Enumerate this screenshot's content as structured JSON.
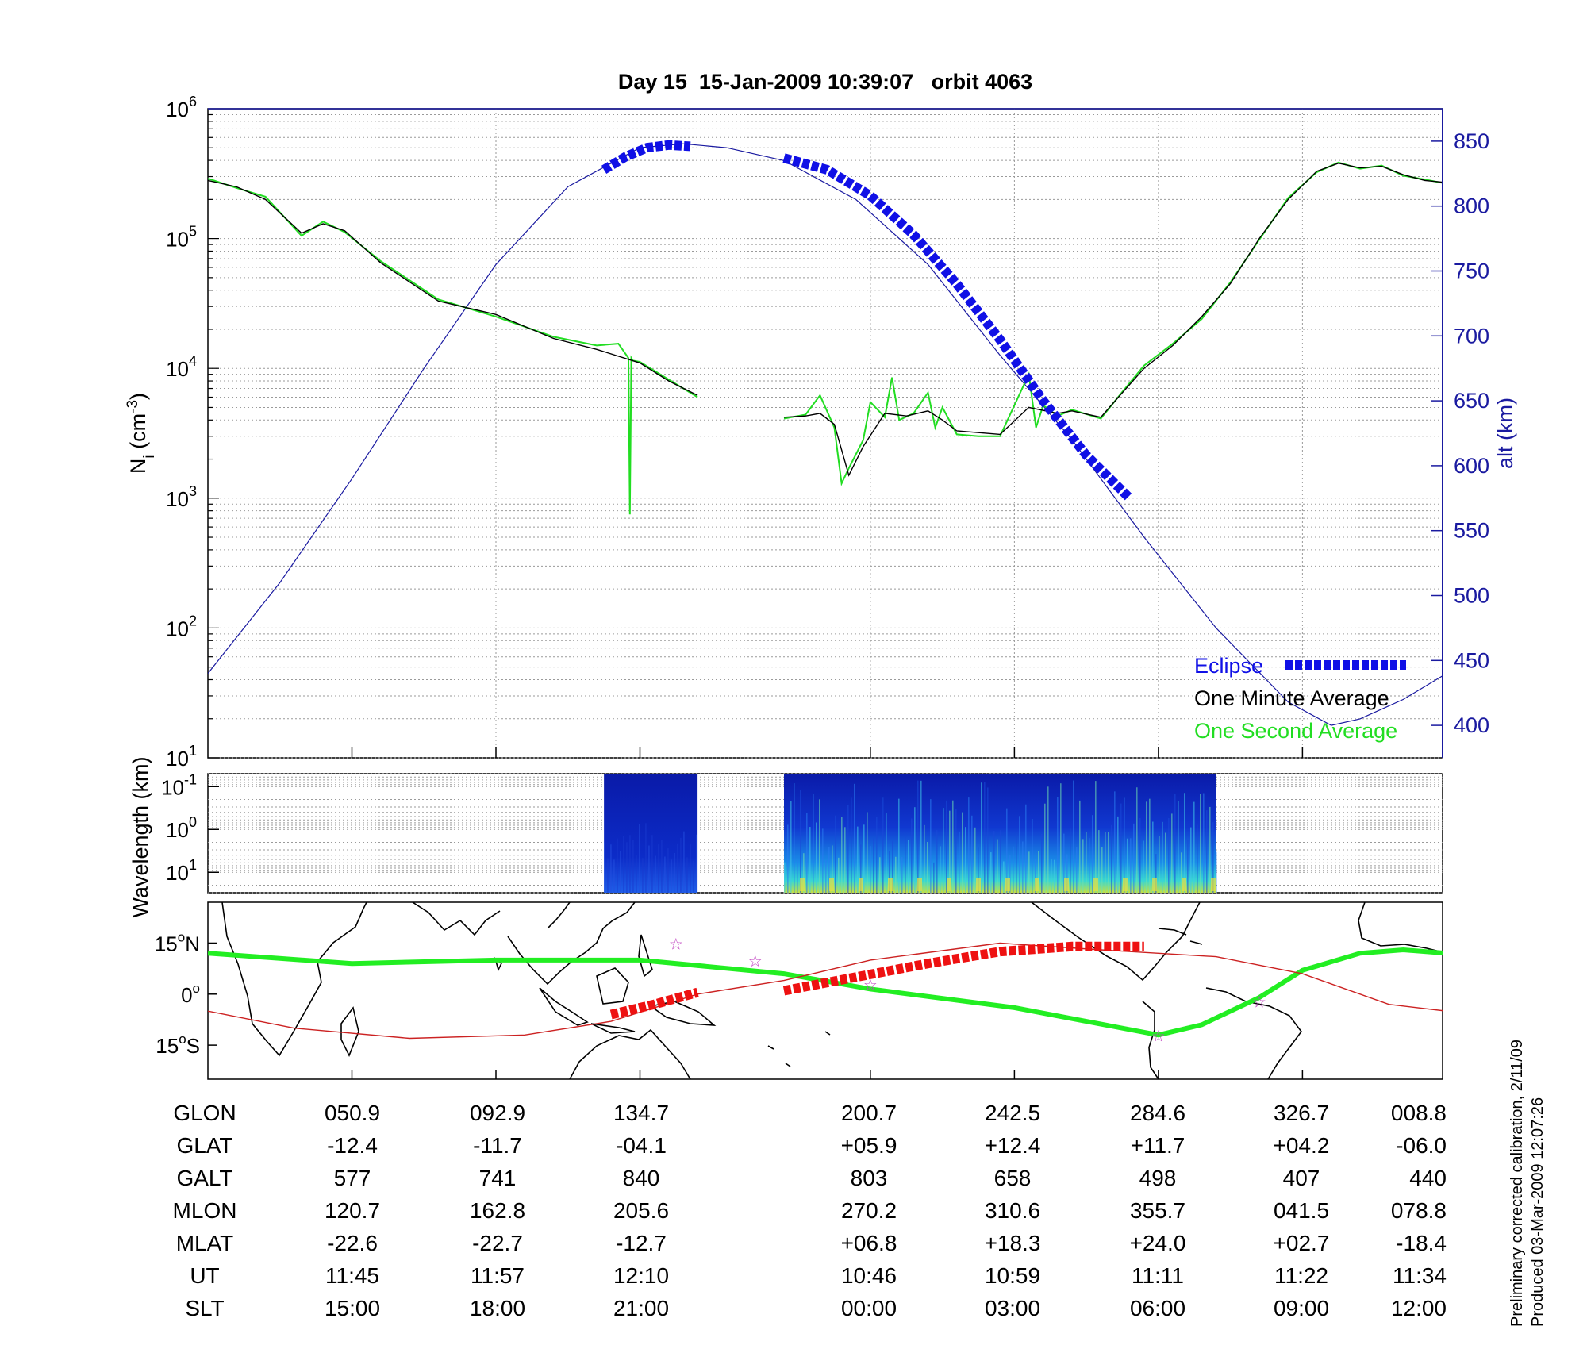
{
  "title": "Day 15  15-Jan-2009 10:39:07   orbit 4063",
  "footer": {
    "line1": "Preliminary corrected calibration, 2/11/09",
    "line2": "Produced 03-Mar-2009 12:07:26"
  },
  "colors": {
    "eclipse": "#1010e6",
    "one_minute": "#000000",
    "one_second": "#22dd22",
    "altitude": "#1a1aa0",
    "track_green": "#22ee22",
    "track_red_thin": "#cc2222",
    "track_red_thick": "#ee1111",
    "star": "#c040c0"
  },
  "chart_data": [
    {
      "type": "line",
      "panel": "density",
      "ylabel": "N_i (cm^-3)",
      "ylabel_main": "N",
      "ylabel_sub": "i",
      "ylabel_rest": " (cm",
      "ylabel_sup": "-3",
      "ylabel_end": ")",
      "yscale": "log",
      "ylim": [
        10,
        1000000
      ],
      "yticks": [
        {
          "base": "10",
          "exp": "1",
          "value": 10
        },
        {
          "base": "10",
          "exp": "2",
          "value": 100
        },
        {
          "base": "10",
          "exp": "3",
          "value": 1000
        },
        {
          "base": "10",
          "exp": "4",
          "value": 10000
        },
        {
          "base": "10",
          "exp": "5",
          "value": 100000
        },
        {
          "base": "10",
          "exp": "6",
          "value": 1000000
        }
      ],
      "y2label": "alt (km)",
      "y2lim": [
        375,
        875
      ],
      "y2ticks": [
        "400",
        "450",
        "500",
        "550",
        "600",
        "650",
        "700",
        "750",
        "800",
        "850"
      ],
      "x_ticks_index": [
        1,
        2,
        3,
        4.6,
        5.6,
        6.6,
        7.6
      ],
      "grid": true,
      "legend_position": "bottom-right",
      "legend": [
        {
          "label": "Eclipse",
          "key": "eclipse"
        },
        {
          "label": "One Minute Average",
          "key": "one_minute"
        },
        {
          "label": "One Second Average",
          "key": "one_second"
        }
      ],
      "series": [
        {
          "name": "One Minute Average",
          "key": "one_minute",
          "segments": [
            {
              "x": [
                0,
                0.2,
                0.4,
                0.65,
                0.8,
                0.95,
                1.2,
                1.6,
                2.0,
                2.4,
                2.7,
                3.0,
                3.2,
                3.4
              ],
              "y": [
                280000,
                250000,
                200000,
                110000,
                130000,
                115000,
                65000,
                33000,
                26000,
                17000,
                14000,
                11000,
                8000,
                6200
              ]
            },
            {
              "x": [
                4.0,
                4.15,
                4.25,
                4.35,
                4.45,
                4.55,
                4.7,
                4.85,
                5.0,
                5.1,
                5.2,
                5.35,
                5.5,
                5.7,
                5.9,
                6.0,
                6.2,
                6.35,
                6.5,
                6.7,
                6.9,
                7.1,
                7.3,
                7.5,
                7.7,
                7.85,
                8.0,
                8.15,
                8.3,
                8.45,
                8.6
              ],
              "y": [
                4200,
                4300,
                4500,
                3700,
                1500,
                2500,
                4500,
                4300,
                4700,
                4000,
                3300,
                3200,
                3100,
                5000,
                4500,
                4700,
                4200,
                6500,
                10000,
                15000,
                25000,
                45000,
                100000,
                200000,
                330000,
                380000,
                350000,
                360000,
                310000,
                280000,
                270000
              ]
            }
          ]
        },
        {
          "name": "One Second Average",
          "key": "one_second",
          "segments": [
            {
              "x": [
                0,
                0.2,
                0.4,
                0.65,
                0.8,
                0.95,
                1.2,
                1.6,
                2.0,
                2.4,
                2.7,
                2.85,
                2.92,
                2.93,
                2.94,
                2.95,
                3.0,
                3.2,
                3.4
              ],
              "y": [
                290000,
                245000,
                210000,
                105000,
                135000,
                112000,
                67000,
                34000,
                25000,
                17500,
                15000,
                15500,
                12000,
                750,
                12000,
                11500,
                11200,
                8200,
                6000
              ]
            },
            {
              "x": [
                4.0,
                4.15,
                4.25,
                4.35,
                4.4,
                4.45,
                4.55,
                4.6,
                4.7,
                4.75,
                4.8,
                4.9,
                5.0,
                5.05,
                5.1,
                5.2,
                5.35,
                5.5,
                5.7,
                5.75,
                5.8,
                5.9,
                6.0,
                6.2,
                6.35,
                6.5,
                6.7,
                6.9,
                7.1,
                7.3,
                7.5,
                7.7,
                7.85,
                8.0,
                8.15,
                8.3,
                8.45,
                8.6
              ],
              "y": [
                4100,
                4400,
                6200,
                3500,
                1300,
                1700,
                2800,
                5500,
                4200,
                8500,
                4000,
                4500,
                6500,
                3500,
                5000,
                3100,
                3000,
                3000,
                9000,
                3500,
                5200,
                4300,
                4800,
                4100,
                6600,
                10500,
                15500,
                24000,
                46000,
                98000,
                205000,
                325000,
                385000,
                345000,
                365000,
                305000,
                285000,
                265000
              ]
            }
          ]
        },
        {
          "name": "alt (km)",
          "key": "altitude",
          "axis": "right",
          "x": [
            0,
            0.5,
            1.0,
            1.5,
            2.0,
            2.5,
            3.0,
            3.3,
            3.6,
            4.0,
            4.5,
            5.0,
            5.5,
            6.0,
            6.5,
            7.0,
            7.5,
            7.8,
            8.0,
            8.3,
            8.6
          ],
          "y": [
            440,
            510,
            590,
            675,
            755,
            815,
            845,
            848,
            845,
            835,
            805,
            755,
            685,
            620,
            545,
            475,
            418,
            400,
            405,
            420,
            440
          ]
        },
        {
          "name": "Eclipse",
          "key": "eclipse",
          "axis": "right",
          "segments": [
            {
              "x": [
                2.75,
                2.9,
                3.05,
                3.2,
                3.35
              ],
              "y": [
                828,
                838,
                845,
                847,
                846
              ]
            },
            {
              "x": [
                4.0,
                4.3,
                4.6,
                4.9,
                5.2,
                5.5,
                5.8,
                6.1,
                6.4
              ],
              "y": [
                837,
                828,
                808,
                778,
                740,
                697,
                650,
                608,
                575
              ]
            }
          ]
        }
      ]
    },
    {
      "type": "heatmap",
      "panel": "spectrogram",
      "ylabel": "Wavelength (km)",
      "yscale": "log",
      "ylim": [
        0.05,
        30
      ],
      "yticks": [
        {
          "base": "10",
          "exp": "-1",
          "value": 0.1
        },
        {
          "base": "10",
          "exp": "0",
          "value": 1
        },
        {
          "base": "10",
          "exp": "1",
          "value": 10
        }
      ],
      "blocks": [
        {
          "x": [
            2.75,
            3.4
          ],
          "intensity": "low"
        },
        {
          "x": [
            4.0,
            7.0
          ],
          "intensity": "high"
        }
      ]
    },
    {
      "type": "line",
      "panel": "map",
      "yticks": [
        {
          "value": 15,
          "label_deg": "15",
          "label_dir": "N"
        },
        {
          "value": 0,
          "label_deg": "0",
          "label_dir": ""
        },
        {
          "value": -15,
          "label_deg": "15",
          "label_dir": "S"
        }
      ],
      "ylim": [
        -25,
        27
      ],
      "series": [
        {
          "key": "track_green",
          "x": [
            0,
            1.0,
            2.0,
            3.0,
            4.0,
            4.6,
            5.6,
            6.6,
            6.9,
            7.3,
            7.6,
            8.0,
            8.3,
            8.6
          ],
          "y": [
            12,
            9,
            10,
            10,
            6,
            1.5,
            -4,
            -12,
            -9,
            -1,
            7,
            12,
            13,
            12
          ]
        },
        {
          "key": "track_red_thin",
          "x": [
            0,
            0.6,
            1.4,
            2.2,
            2.8,
            3.4,
            4.0,
            4.6,
            5.5,
            6.2,
            7.0,
            7.6,
            8.2,
            8.6
          ],
          "y": [
            -5,
            -10,
            -13,
            -12,
            -8,
            0,
            4,
            10,
            15,
            13,
            11,
            6,
            -3,
            -5
          ]
        },
        {
          "key": "track_red_thick",
          "segments": [
            {
              "x": [
                2.8,
                3.1,
                3.4
              ],
              "y": [
                -6,
                -3,
                0.5
              ]
            },
            {
              "x": [
                4.0,
                4.5,
                5.0,
                5.5,
                6.0,
                6.5
              ],
              "y": [
                1,
                5,
                9,
                12.5,
                14,
                14
              ]
            }
          ]
        }
      ],
      "stars": [
        {
          "x": 3.25,
          "y": 15
        },
        {
          "x": 3.8,
          "y": 10
        },
        {
          "x": 4.6,
          "y": 3
        },
        {
          "x": 6.6,
          "y": -12
        },
        {
          "x": 7.3,
          "y": -2
        }
      ]
    },
    {
      "type": "table",
      "panel": "orbit-table",
      "rows": [
        {
          "label": "GLON",
          "values": [
            "050.9",
            "092.9",
            "134.7",
            "200.7",
            "242.5",
            "284.6",
            "326.7",
            "008.8"
          ]
        },
        {
          "label": "GLAT",
          "values": [
            "-12.4",
            "-11.7",
            "-04.1",
            "+05.9",
            "+12.4",
            "+11.7",
            "+04.2",
            "-06.0"
          ]
        },
        {
          "label": "GALT",
          "values": [
            "577",
            "741",
            "840",
            "803",
            "658",
            "498",
            "407",
            "440"
          ]
        },
        {
          "label": "MLON",
          "values": [
            "120.7",
            "162.8",
            "205.6",
            "270.2",
            "310.6",
            "355.7",
            "041.5",
            "078.8"
          ]
        },
        {
          "label": "MLAT",
          "values": [
            "-22.6",
            "-22.7",
            "-12.7",
            "+06.8",
            "+18.3",
            "+24.0",
            "+02.7",
            "-18.4"
          ]
        },
        {
          "label": "UT",
          "values": [
            "11:45",
            "11:57",
            "12:10",
            "10:46",
            "10:59",
            "11:11",
            "11:22",
            "11:34"
          ]
        },
        {
          "label": "SLT",
          "values": [
            "15:00",
            "18:00",
            "21:00",
            "00:00",
            "03:00",
            "06:00",
            "09:00",
            "12:00"
          ]
        }
      ]
    }
  ]
}
